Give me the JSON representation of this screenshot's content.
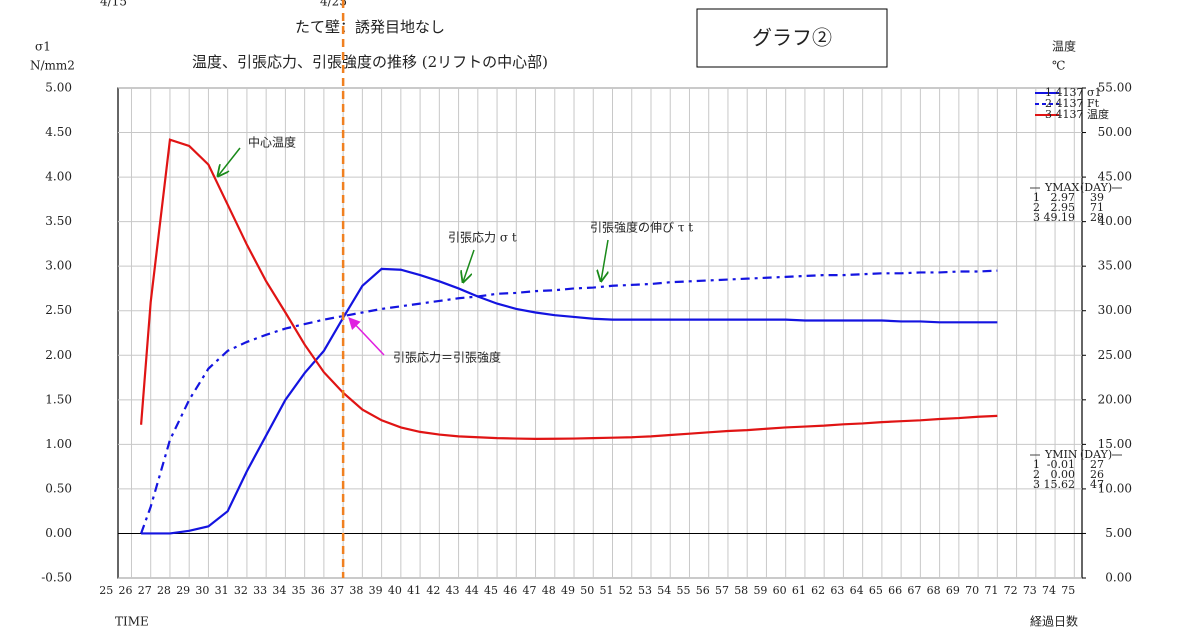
{
  "chart_data": {
    "type": "line",
    "title": "たて壁：誘発目地なし",
    "subtitle": "温度、引張応力、引張強度の推移 (2リフトの中心部)",
    "label_box": "グラフ②",
    "top_labels": [
      "4/15",
      "4/25"
    ],
    "y_label": [
      "σ1",
      "N/mm2"
    ],
    "y2_label": [
      "温度",
      "℃"
    ],
    "x_label": "TIME",
    "x2_label": "経過日数",
    "x": [
      26.5,
      27,
      28,
      29,
      30,
      31,
      32,
      33,
      34,
      35,
      36,
      37,
      38,
      39,
      40,
      41,
      42,
      43,
      44,
      45,
      46,
      47,
      48,
      49,
      50,
      51,
      52,
      53,
      54,
      55,
      56,
      57,
      58,
      59,
      60,
      61,
      62,
      63,
      64,
      65,
      66,
      67,
      68,
      69,
      70,
      71
    ],
    "series": [
      {
        "name": "1 4137 σ1",
        "color": "#1414e0",
        "dash": false,
        "values": [
          0,
          0,
          0,
          0.03,
          0.08,
          0.25,
          0.7,
          1.1,
          1.5,
          1.8,
          2.05,
          2.42,
          2.78,
          2.97,
          2.96,
          2.9,
          2.83,
          2.75,
          2.66,
          2.58,
          2.52,
          2.48,
          2.45,
          2.43,
          2.41,
          2.4,
          2.4,
          2.4,
          2.4,
          2.4,
          2.4,
          2.4,
          2.4,
          2.4,
          2.4,
          2.39,
          2.39,
          2.39,
          2.39,
          2.39,
          2.38,
          2.38,
          2.37,
          2.37,
          2.37,
          2.37
        ]
      },
      {
        "name": "2 4137 Ft",
        "color": "#1414e0",
        "dash": true,
        "values": [
          0,
          0.3,
          1.05,
          1.5,
          1.85,
          2.05,
          2.15,
          2.23,
          2.3,
          2.35,
          2.4,
          2.44,
          2.48,
          2.52,
          2.55,
          2.58,
          2.61,
          2.64,
          2.66,
          2.69,
          2.7,
          2.72,
          2.73,
          2.75,
          2.76,
          2.78,
          2.79,
          2.8,
          2.82,
          2.83,
          2.84,
          2.85,
          2.86,
          2.87,
          2.88,
          2.89,
          2.9,
          2.9,
          2.91,
          2.92,
          2.92,
          2.93,
          2.93,
          2.94,
          2.94,
          2.95
        ]
      },
      {
        "name": "3 4137 温度",
        "color": "#e01414",
        "dash": false,
        "axis": "y2",
        "values": [
          17.2,
          31,
          49.19,
          48.5,
          46.4,
          41.9,
          37.4,
          33.3,
          29.8,
          26.2,
          23.1,
          20.8,
          18.9,
          17.7,
          16.9,
          16.4,
          16.1,
          15.9,
          15.8,
          15.7,
          15.65,
          15.62,
          15.63,
          15.65,
          15.7,
          15.75,
          15.8,
          15.9,
          16.05,
          16.2,
          16.35,
          16.5,
          16.6,
          16.75,
          16.9,
          17.0,
          17.1,
          17.25,
          17.35,
          17.5,
          17.6,
          17.7,
          17.85,
          17.95,
          18.1,
          18.2
        ]
      }
    ],
    "xlim": [
      25.3,
      75.4
    ],
    "xticks": [
      25,
      26,
      27,
      28,
      29,
      30,
      31,
      32,
      33,
      34,
      35,
      36,
      37,
      38,
      39,
      40,
      41,
      42,
      43,
      44,
      45,
      46,
      47,
      48,
      49,
      50,
      51,
      52,
      53,
      54,
      55,
      56,
      57,
      58,
      59,
      60,
      61,
      62,
      63,
      64,
      65,
      66,
      67,
      68,
      69,
      70,
      71,
      72,
      73,
      74,
      75
    ],
    "ylim": [
      -0.5,
      5
    ],
    "yticks": [
      {
        "value": -0.5,
        "label": "-0.50"
      },
      {
        "value": 0,
        "label": "0.00"
      },
      {
        "value": 0.5,
        "label": "0.50"
      },
      {
        "value": 1,
        "label": "1.00"
      },
      {
        "value": 1.5,
        "label": "1.50"
      },
      {
        "value": 2,
        "label": "2.00"
      },
      {
        "value": 2.5,
        "label": "2.50"
      },
      {
        "value": 3,
        "label": "3.00"
      },
      {
        "value": 3.5,
        "label": "3.50"
      },
      {
        "value": 4,
        "label": "4.00"
      },
      {
        "value": 4.5,
        "label": "4.50"
      },
      {
        "value": 5,
        "label": "5.00"
      }
    ],
    "y2lim": [
      0,
      55
    ],
    "y2ticks": [
      {
        "value": 0,
        "label": "0.00"
      },
      {
        "value": 5,
        "label": "5.00"
      },
      {
        "value": 10,
        "label": "10.00"
      },
      {
        "value": 15,
        "label": "15.00"
      },
      {
        "value": 20,
        "label": "20.00"
      },
      {
        "value": 25,
        "label": "25.00"
      },
      {
        "value": 30,
        "label": "30.00"
      },
      {
        "value": 35,
        "label": "35.00"
      },
      {
        "value": 40,
        "label": "40.00"
      },
      {
        "value": 45,
        "label": "45.00"
      },
      {
        "value": 50,
        "label": "50.00"
      },
      {
        "value": 55,
        "label": "55.00"
      }
    ],
    "grid": true,
    "legend": "upper right",
    "marker_x": 37,
    "annotations": [
      "中心温度",
      "引張応力 σ t",
      "引張強度の伸び τ t",
      "引張応力＝引張強度"
    ],
    "ymax_table": {
      "header": [
        "YMAX",
        "(DAY)"
      ],
      "rows": [
        [
          "1",
          "2.97",
          "39"
        ],
        [
          "2",
          "2.95",
          "71"
        ],
        [
          "3",
          "49.19",
          "28"
        ]
      ]
    },
    "ymin_table": {
      "header": [
        "YMIN",
        "(DAY)"
      ],
      "rows": [
        [
          "1",
          "-0.01",
          "27"
        ],
        [
          "2",
          "0.00",
          "26"
        ],
        [
          "3",
          "15.62",
          "47"
        ]
      ]
    }
  }
}
